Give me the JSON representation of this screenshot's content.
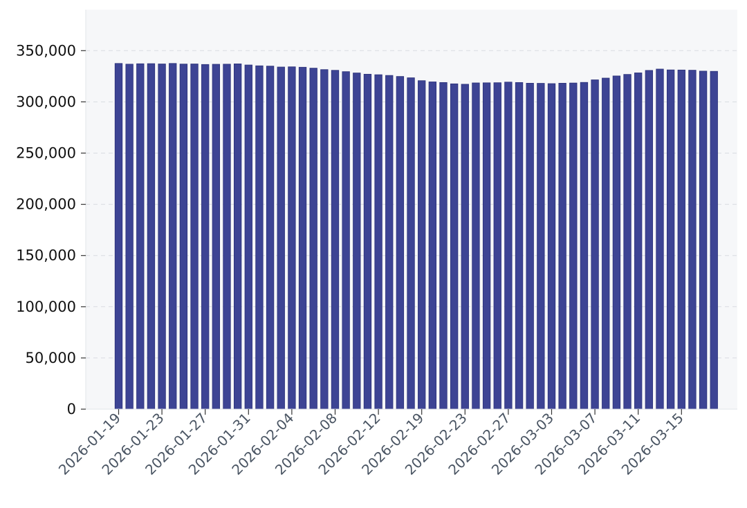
{
  "chart_data": {
    "type": "bar",
    "title": "",
    "xlabel": "",
    "ylabel": "",
    "ylim": [
      0,
      390000
    ],
    "yticks": [
      0,
      50000,
      100000,
      150000,
      200000,
      250000,
      300000,
      350000
    ],
    "ytick_labels": [
      "0",
      "50,000",
      "100,000",
      "150,000",
      "200,000",
      "250,000",
      "300,000",
      "350,000"
    ],
    "grid": "horizontal-dashed",
    "colors": {
      "bar": "#3d4494",
      "bar_edge": "#2b3178",
      "plot_bg": "#f6f7f9",
      "grid": "#d9dce1"
    },
    "xtick_labels": [
      "2026-01-19",
      "2026-01-23",
      "2026-01-27",
      "2026-01-31",
      "2026-02-04",
      "2026-02-08",
      "2026-02-12",
      "2026-02-19",
      "2026-02-23",
      "2026-02-27",
      "2026-03-03",
      "2026-03-07",
      "2026-03-11",
      "2026-03-15"
    ],
    "xtick_bar_index": [
      0,
      4,
      8,
      12,
      16,
      20,
      24,
      28,
      32,
      36,
      40,
      44,
      48,
      52
    ],
    "values": [
      337500,
      336800,
      337200,
      337300,
      337000,
      337500,
      336900,
      337000,
      336500,
      336700,
      336800,
      337100,
      336000,
      335200,
      334900,
      334000,
      334200,
      333800,
      332900,
      331500,
      330800,
      329500,
      328200,
      327000,
      326500,
      325800,
      324800,
      323500,
      320700,
      319500,
      318900,
      317600,
      317200,
      318500,
      318600,
      318700,
      319300,
      318900,
      318200,
      318100,
      317800,
      318200,
      318400,
      319000,
      321500,
      323200,
      325300,
      326800,
      328300,
      330700,
      332000,
      331200,
      331100,
      330900,
      330000,
      329800
    ]
  }
}
